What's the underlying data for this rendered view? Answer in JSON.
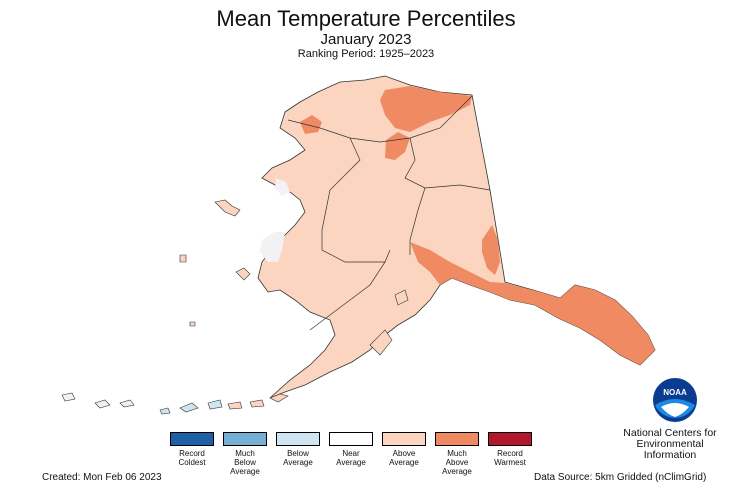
{
  "header": {
    "title": "Mean Temperature Percentiles",
    "subtitle": "January 2023",
    "period": "Ranking Period: 1925–2023"
  },
  "legend": [
    {
      "label": "Record\nColdest",
      "color": "#1f5fa6"
    },
    {
      "label": "Much\nBelow\nAverage",
      "color": "#76afd6"
    },
    {
      "label": "Below\nAverage",
      "color": "#cfe5f1"
    },
    {
      "label": "Near\nAverage",
      "color": "#ffffff"
    },
    {
      "label": "Above\nAverage",
      "color": "#fbd5c0"
    },
    {
      "label": "Much\nAbove\nAverage",
      "color": "#ef8a62"
    },
    {
      "label": "Record\nWarmest",
      "color": "#b2182b"
    }
  ],
  "footer": {
    "created": "Created: Mon Feb 06 2023",
    "source": "Data Source: 5km Gridded (nClimGrid)"
  },
  "logo": {
    "text": "NOAA",
    "org": "National Centers for\nEnvironmental\nInformation"
  },
  "colors": {
    "above": "#fbd5c0",
    "much_above": "#ef8a62",
    "near": "#f7f3f6",
    "below": "#cfe5f1",
    "outline": "#333333"
  }
}
